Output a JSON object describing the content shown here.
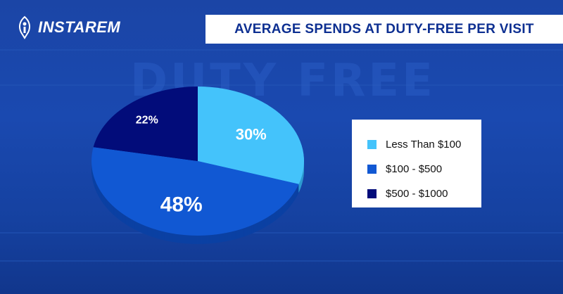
{
  "brand": {
    "name": "INSTAREM"
  },
  "chart_data": {
    "type": "pie",
    "title": "AVERAGE SPENDS AT DUTY-FREE PER VISIT",
    "categories": [
      "Less Than $100",
      "$100 - $500",
      "$500 - $1000"
    ],
    "values": [
      30,
      48,
      22
    ],
    "labels": [
      "30%",
      "48%",
      "22%"
    ],
    "colors": [
      "#44c3fb",
      "#1158d3",
      "#020c7a"
    ],
    "side_colors": [
      "#2d9bd0",
      "#0b40a3",
      "#010850"
    ],
    "legend_position": "right"
  }
}
